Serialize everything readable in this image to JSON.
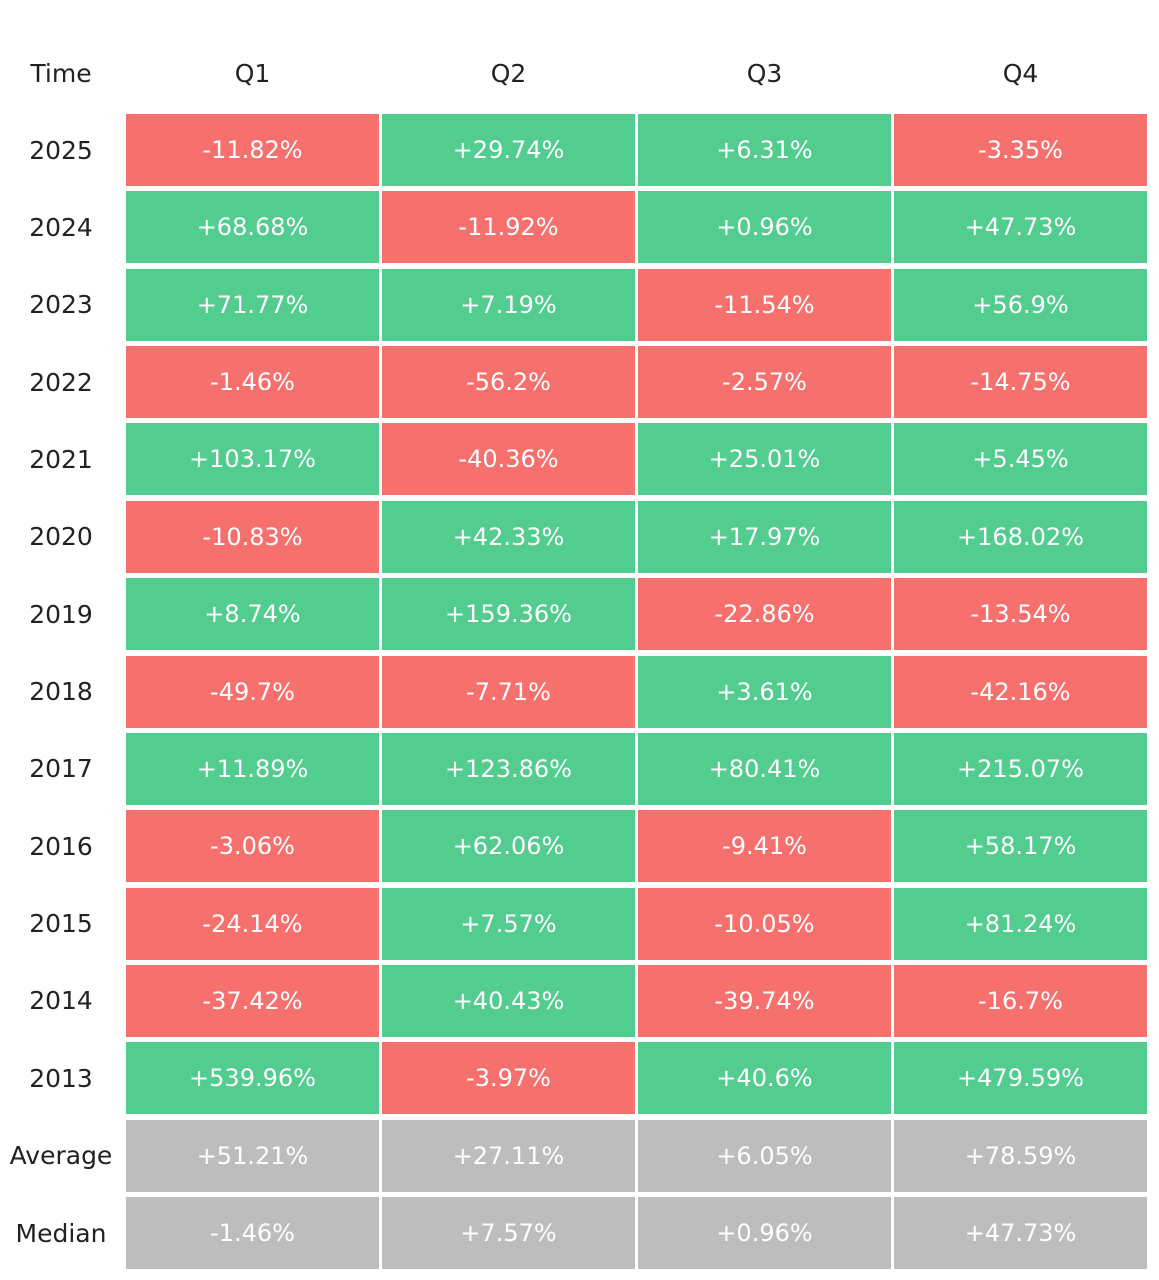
{
  "table": {
    "header": [
      "Time",
      "Q1",
      "Q2",
      "Q3",
      "Q4"
    ],
    "colors": {
      "positive": "#52cc8f",
      "negative": "#f6706e",
      "summary": "#bdbdbd"
    },
    "rows": [
      {
        "label": "2025",
        "cells": [
          "-11.82%",
          "+29.74%",
          "+6.31%",
          "-3.35%"
        ]
      },
      {
        "label": "2024",
        "cells": [
          "+68.68%",
          "-11.92%",
          "+0.96%",
          "+47.73%"
        ]
      },
      {
        "label": "2023",
        "cells": [
          "+71.77%",
          "+7.19%",
          "-11.54%",
          "+56.9%"
        ]
      },
      {
        "label": "2022",
        "cells": [
          "-1.46%",
          "-56.2%",
          "-2.57%",
          "-14.75%"
        ]
      },
      {
        "label": "2021",
        "cells": [
          "+103.17%",
          "-40.36%",
          "+25.01%",
          "+5.45%"
        ]
      },
      {
        "label": "2020",
        "cells": [
          "-10.83%",
          "+42.33%",
          "+17.97%",
          "+168.02%"
        ]
      },
      {
        "label": "2019",
        "cells": [
          "+8.74%",
          "+159.36%",
          "-22.86%",
          "-13.54%"
        ]
      },
      {
        "label": "2018",
        "cells": [
          "-49.7%",
          "-7.71%",
          "+3.61%",
          "-42.16%"
        ]
      },
      {
        "label": "2017",
        "cells": [
          "+11.89%",
          "+123.86%",
          "+80.41%",
          "+215.07%"
        ]
      },
      {
        "label": "2016",
        "cells": [
          "-3.06%",
          "+62.06%",
          "-9.41%",
          "+58.17%"
        ]
      },
      {
        "label": "2015",
        "cells": [
          "-24.14%",
          "+7.57%",
          "-10.05%",
          "+81.24%"
        ]
      },
      {
        "label": "2014",
        "cells": [
          "-37.42%",
          "+40.43%",
          "-39.74%",
          "-16.7%"
        ]
      },
      {
        "label": "2013",
        "cells": [
          "+539.96%",
          "-3.97%",
          "+40.6%",
          "+479.59%"
        ]
      }
    ],
    "summary_rows": [
      {
        "label": "Average",
        "cells": [
          "+51.21%",
          "+27.11%",
          "+6.05%",
          "+78.59%"
        ]
      },
      {
        "label": "Median",
        "cells": [
          "-1.46%",
          "+7.57%",
          "+0.96%",
          "+47.73%"
        ]
      }
    ]
  }
}
